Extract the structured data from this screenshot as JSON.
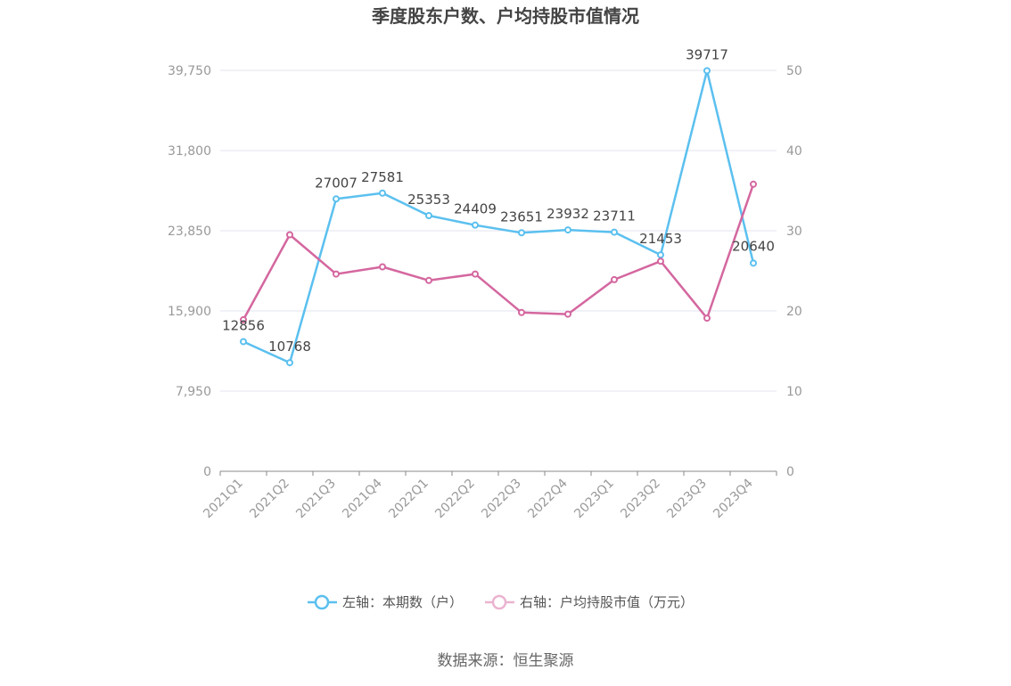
{
  "chart_data": {
    "type": "line",
    "title": "季度股东户数、户均持股市值情况",
    "categories": [
      "2021Q1",
      "2021Q2",
      "2021Q3",
      "2021Q4",
      "2022Q1",
      "2022Q2",
      "2022Q3",
      "2022Q4",
      "2023Q1",
      "2023Q2",
      "2023Q3",
      "2023Q4"
    ],
    "left_axis": {
      "ticks": [
        "0",
        "7,950",
        "15,900",
        "23,850",
        "31,800",
        "39,750"
      ],
      "ylim": [
        0,
        39750
      ]
    },
    "right_axis": {
      "ticks": [
        "0",
        "10",
        "20",
        "30",
        "40",
        "50"
      ],
      "ylim": [
        0,
        50
      ]
    },
    "series": [
      {
        "name": "左轴：本期数（户）",
        "axis": "left",
        "color": "#5bc0ef",
        "values": [
          12856,
          10768,
          27007,
          27581,
          25353,
          24409,
          23651,
          23932,
          23711,
          21453,
          39717,
          20640
        ],
        "labels": [
          "12856",
          "10768",
          "27007",
          "27581",
          "25353",
          "24409",
          "23651",
          "23932",
          "23711",
          "21453",
          "39717",
          "20640"
        ]
      },
      {
        "name": "右轴：户均持股市值（万元）",
        "axis": "right",
        "color": "#d4679f",
        "values": [
          18.9,
          29.5,
          24.6,
          25.5,
          23.8,
          24.6,
          19.8,
          19.6,
          23.9,
          26.2,
          19.1,
          35.8
        ]
      }
    ],
    "grid": true,
    "legend_position": "bottom"
  },
  "source": "数据来源：恒生聚源"
}
